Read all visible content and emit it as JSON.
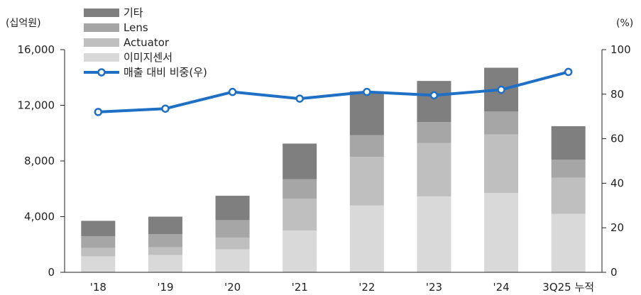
{
  "chart_data": {
    "type": "bar",
    "stacked": true,
    "categories": [
      "'18",
      "'19",
      "'20",
      "'21",
      "'22",
      "'23",
      "'24",
      "3Q25 누적"
    ],
    "y_left_unit": "(십억원)",
    "y_right_unit": "(%)",
    "ylim_left": [
      0,
      16000
    ],
    "ylim_right": [
      0,
      100
    ],
    "yticks_left": [
      "0",
      "4,000",
      "8,000",
      "12,000",
      "16,000"
    ],
    "yticks_right": [
      "0",
      "20",
      "40",
      "60",
      "80",
      "100"
    ],
    "series": [
      {
        "name": "이미지센서",
        "color": "#d9d9d9",
        "values": [
          1150,
          1250,
          1650,
          3000,
          4800,
          5450,
          5700,
          4200
        ]
      },
      {
        "name": "Actuator",
        "color": "#bfbfbf",
        "values": [
          600,
          550,
          850,
          2300,
          3500,
          3850,
          4200,
          2600
        ]
      },
      {
        "name": "Lens",
        "color": "#a6a6a6",
        "values": [
          850,
          950,
          1250,
          1400,
          1550,
          1500,
          1650,
          1300
        ]
      },
      {
        "name": "기타",
        "color": "#7f7f7f",
        "values": [
          1100,
          1250,
          1750,
          2550,
          3150,
          2950,
          3150,
          2400
        ]
      }
    ],
    "line_series": {
      "name": "매출 대비 비중(우)",
      "color": "#1f6fc5",
      "axis": "right",
      "values": [
        72,
        73.5,
        81,
        78,
        81,
        79.5,
        82,
        90
      ]
    },
    "legend_position": "top-left",
    "grid": false
  }
}
